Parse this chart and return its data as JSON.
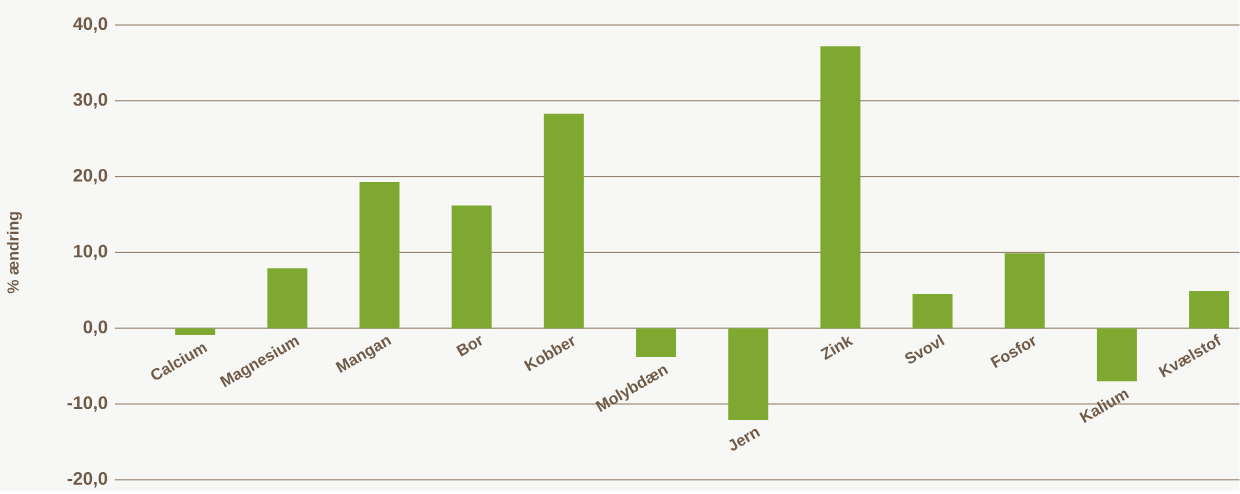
{
  "chart_data": {
    "type": "bar",
    "ylabel": "% ændring",
    "categories": [
      "Calcium",
      "Magnesium",
      "Mangan",
      "Bor",
      "Kobber",
      "Molybdæn",
      "Jern",
      "Zink",
      "Svovl",
      "Fosfor",
      "Kalium",
      "Kvælstof"
    ],
    "values": [
      -0.9,
      7.9,
      19.3,
      16.2,
      28.3,
      -3.8,
      -12.1,
      37.2,
      4.5,
      9.9,
      -7.0,
      4.9
    ],
    "color": "#7ea830",
    "ylim": [
      -20,
      40
    ],
    "yticks": [
      {
        "value": -20,
        "label": "-20,0"
      },
      {
        "value": -10,
        "label": "-10,0"
      },
      {
        "value": 0,
        "label": "0,0"
      },
      {
        "value": 10,
        "label": "10,0"
      },
      {
        "value": 20,
        "label": "20,0"
      },
      {
        "value": 30,
        "label": "30,0"
      },
      {
        "value": 40,
        "label": "40,0"
      }
    ],
    "grid": "y"
  }
}
